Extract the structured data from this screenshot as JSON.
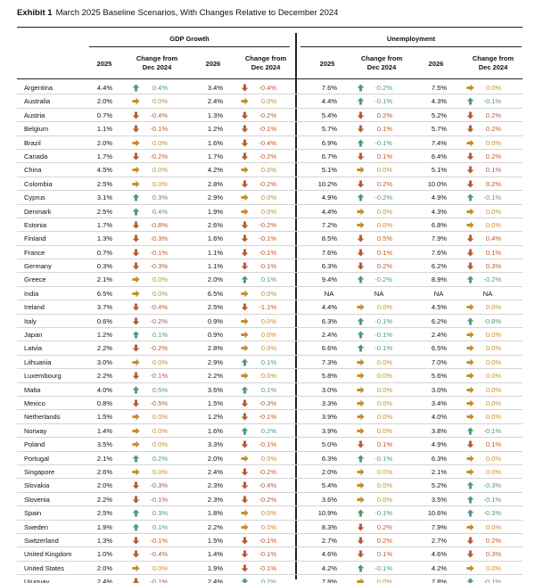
{
  "exhibit": {
    "label": "Exhibit 1",
    "title": "March 2025 Baseline Scenarios, With Changes Relative to December 2024"
  },
  "groups": {
    "gdp": "GDP Growth",
    "unemployment": "Unemployment"
  },
  "columns": {
    "y2025": "2025",
    "y2026": "2026",
    "change_line1": "Change from",
    "change_line2": "Dec 2024"
  },
  "colors": {
    "up": "#4d9a7a",
    "down": "#b85a2e",
    "flat": "#c78d2a"
  },
  "icons": {
    "up": "up-arrow-icon",
    "down": "down-arrow-icon",
    "flat": "right-arrow-icon"
  },
  "rows": [
    {
      "country": "Argentina",
      "g25": "4.4%",
      "g25d": "up",
      "g25c": "0.4%",
      "g26": "3.4%",
      "g26d": "down",
      "g26c": "-0.4%",
      "u25": "7.6%",
      "u25d": "up",
      "u25c": "-0.2%",
      "u26": "7.5%",
      "u26d": "flat",
      "u26c": "0.0%"
    },
    {
      "country": "Australia",
      "g25": "2.0%",
      "g25d": "flat",
      "g25c": "0.0%",
      "g26": "2.4%",
      "g26d": "flat",
      "g26c": "0.0%",
      "u25": "4.4%",
      "u25d": "up",
      "u25c": "-0.1%",
      "u26": "4.3%",
      "u26d": "up",
      "u26c": "-0.1%"
    },
    {
      "country": "Austria",
      "g25": "0.7%",
      "g25d": "down",
      "g25c": "-0.4%",
      "g26": "1.3%",
      "g26d": "down",
      "g26c": "-0.2%",
      "u25": "5.4%",
      "u25d": "down",
      "u25c": "0.2%",
      "u26": "5.2%",
      "u26d": "down",
      "u26c": "0.2%"
    },
    {
      "country": "Belgium",
      "g25": "1.1%",
      "g25d": "down",
      "g25c": "-0.1%",
      "g26": "1.2%",
      "g26d": "down",
      "g26c": "-0.1%",
      "u25": "5.7%",
      "u25d": "down",
      "u25c": "0.1%",
      "u26": "5.7%",
      "u26d": "down",
      "u26c": "0.2%"
    },
    {
      "country": "Brazil",
      "g25": "2.0%",
      "g25d": "flat",
      "g25c": "0.0%",
      "g26": "1.6%",
      "g26d": "down",
      "g26c": "-0.4%",
      "u25": "6.9%",
      "u25d": "up",
      "u25c": "-0.1%",
      "u26": "7.4%",
      "u26d": "flat",
      "u26c": "0.0%"
    },
    {
      "country": "Canada",
      "g25": "1.7%",
      "g25d": "down",
      "g25c": "-0.2%",
      "g26": "1.7%",
      "g26d": "down",
      "g26c": "-0.2%",
      "u25": "6.7%",
      "u25d": "down",
      "u25c": "0.1%",
      "u26": "6.4%",
      "u26d": "down",
      "u26c": "0.2%"
    },
    {
      "country": "China",
      "g25": "4.5%",
      "g25d": "flat",
      "g25c": "0.0%",
      "g26": "4.2%",
      "g26d": "flat",
      "g26c": "0.0%",
      "u25": "5.1%",
      "u25d": "flat",
      "u25c": "0.0%",
      "u26": "5.1%",
      "u26d": "down",
      "u26c": "0.1%"
    },
    {
      "country": "Colombia",
      "g25": "2.5%",
      "g25d": "flat",
      "g25c": "0.0%",
      "g26": "2.8%",
      "g26d": "down",
      "g26c": "-0.2%",
      "u25": "10.2%",
      "u25d": "down",
      "u25c": "0.2%",
      "u26": "10.0%",
      "u26d": "down",
      "u26c": "0.2%"
    },
    {
      "country": "Cyprus",
      "g25": "3.1%",
      "g25d": "up",
      "g25c": "0.3%",
      "g26": "2.9%",
      "g26d": "flat",
      "g26c": "0.0%",
      "u25": "4.9%",
      "u25d": "up",
      "u25c": "-0.2%",
      "u26": "4.9%",
      "u26d": "up",
      "u26c": "-0.1%"
    },
    {
      "country": "Denmark",
      "g25": "2.5%",
      "g25d": "up",
      "g25c": "0.4%",
      "g26": "1.9%",
      "g26d": "flat",
      "g26c": "0.0%",
      "u25": "4.4%",
      "u25d": "flat",
      "u25c": "0.0%",
      "u26": "4.3%",
      "u26d": "flat",
      "u26c": "0.0%"
    },
    {
      "country": "Estonia",
      "g25": "1.7%",
      "g25d": "down",
      "g25c": "-0.8%",
      "g26": "2.6%",
      "g26d": "down",
      "g26c": "-0.2%",
      "u25": "7.2%",
      "u25d": "flat",
      "u25c": "0.0%",
      "u26": "6.8%",
      "u26d": "flat",
      "u26c": "0.0%"
    },
    {
      "country": "Finland",
      "g25": "1.3%",
      "g25d": "down",
      "g25c": "-0.3%",
      "g26": "1.6%",
      "g26d": "down",
      "g26c": "-0.1%",
      "u25": "8.5%",
      "u25d": "down",
      "u25c": "0.5%",
      "u26": "7.9%",
      "u26d": "down",
      "u26c": "0.4%"
    },
    {
      "country": "France",
      "g25": "0.7%",
      "g25d": "down",
      "g25c": "-0.1%",
      "g26": "1.1%",
      "g26d": "down",
      "g26c": "-0.1%",
      "u25": "7.6%",
      "u25d": "down",
      "u25c": "0.1%",
      "u26": "7.6%",
      "u26d": "down",
      "u26c": "0.1%"
    },
    {
      "country": "Germany",
      "g25": "0.3%",
      "g25d": "down",
      "g25c": "-0.3%",
      "g26": "1.1%",
      "g26d": "down",
      "g26c": "-0.1%",
      "u25": "6.3%",
      "u25d": "down",
      "u25c": "0.2%",
      "u26": "6.2%",
      "u26d": "down",
      "u26c": "0.3%"
    },
    {
      "country": "Greece",
      "g25": "2.1%",
      "g25d": "flat",
      "g25c": "0.0%",
      "g26": "2.0%",
      "g26d": "up",
      "g26c": "0.1%",
      "u25": "9.4%",
      "u25d": "up",
      "u25c": "-0.2%",
      "u26": "8.9%",
      "u26d": "up",
      "u26c": "-0.2%"
    },
    {
      "country": "India",
      "g25": "6.5%",
      "g25d": "flat",
      "g25c": "0.0%",
      "g26": "6.5%",
      "g26d": "flat",
      "g26c": "0.0%",
      "u25": "NA",
      "u25d": "",
      "u25c": "NA",
      "u26": "NA",
      "u26d": "",
      "u26c": "NA"
    },
    {
      "country": "Ireland",
      "g25": "3.7%",
      "g25d": "down",
      "g25c": "-0.4%",
      "g26": "2.5%",
      "g26d": "down",
      "g26c": "-1.1%",
      "u25": "4.4%",
      "u25d": "flat",
      "u25c": "0.0%",
      "u26": "4.5%",
      "u26d": "flat",
      "u26c": "0.0%"
    },
    {
      "country": "Italy",
      "g25": "0.6%",
      "g25d": "down",
      "g25c": "-0.2%",
      "g26": "0.9%",
      "g26d": "flat",
      "g26c": "0.0%",
      "u25": "6.3%",
      "u25d": "up",
      "u25c": "-0.1%",
      "u26": "6.2%",
      "u26d": "up",
      "u26c": "-0.8%"
    },
    {
      "country": "Japan",
      "g25": "1.2%",
      "g25d": "up",
      "g25c": "0.1%",
      "g26": "0.9%",
      "g26d": "flat",
      "g26c": "0.0%",
      "u25": "2.4%",
      "u25d": "up",
      "u25c": "-0.1%",
      "u26": "2.4%",
      "u26d": "flat",
      "u26c": "0.0%"
    },
    {
      "country": "Latvia",
      "g25": "2.2%",
      "g25d": "down",
      "g25c": "-0.2%",
      "g26": "2.8%",
      "g26d": "flat",
      "g26c": "0.0%",
      "u25": "6.6%",
      "u25d": "up",
      "u25c": "-0.1%",
      "u26": "6.5%",
      "u26d": "flat",
      "u26c": "0.0%"
    },
    {
      "country": "Lithuania",
      "g25": "3.0%",
      "g25d": "flat",
      "g25c": "0.0%",
      "g26": "2.9%",
      "g26d": "up",
      "g26c": "0.1%",
      "u25": "7.3%",
      "u25d": "flat",
      "u25c": "0.0%",
      "u26": "7.0%",
      "u26d": "flat",
      "u26c": "0.0%"
    },
    {
      "country": "Luxembourg",
      "g25": "2.2%",
      "g25d": "down",
      "g25c": "-0.1%",
      "g26": "2.2%",
      "g26d": "flat",
      "g26c": "0.0%",
      "u25": "5.8%",
      "u25d": "flat",
      "u25c": "0.0%",
      "u26": "5.6%",
      "u26d": "flat",
      "u26c": "0.0%"
    },
    {
      "country": "Malta",
      "g25": "4.0%",
      "g25d": "up",
      "g25c": "0.5%",
      "g26": "3.6%",
      "g26d": "up",
      "g26c": "0.1%",
      "u25": "3.0%",
      "u25d": "flat",
      "u25c": "0.0%",
      "u26": "3.0%",
      "u26d": "flat",
      "u26c": "0.0%"
    },
    {
      "country": "Mexico",
      "g25": "0.8%",
      "g25d": "down",
      "g25c": "-0.5%",
      "g26": "1.5%",
      "g26d": "down",
      "g26c": "-0.3%",
      "u25": "3.3%",
      "u25d": "flat",
      "u25c": "0.0%",
      "u26": "3.4%",
      "u26d": "flat",
      "u26c": "0.0%"
    },
    {
      "country": "Netherlands",
      "g25": "1.5%",
      "g25d": "flat",
      "g25c": "0.0%",
      "g26": "1.2%",
      "g26d": "down",
      "g26c": "-0.1%",
      "u25": "3.9%",
      "u25d": "flat",
      "u25c": "0.0%",
      "u26": "4.0%",
      "u26d": "flat",
      "u26c": "0.0%"
    },
    {
      "country": "Norway",
      "g25": "1.4%",
      "g25d": "flat",
      "g25c": "0.0%",
      "g26": "1.6%",
      "g26d": "up",
      "g26c": "0.2%",
      "u25": "3.9%",
      "u25d": "flat",
      "u25c": "0.0%",
      "u26": "3.8%",
      "u26d": "up",
      "u26c": "-0.1%"
    },
    {
      "country": "Poland",
      "g25": "3.5%",
      "g25d": "flat",
      "g25c": "0.0%",
      "g26": "3.3%",
      "g26d": "down",
      "g26c": "-0.1%",
      "u25": "5.0%",
      "u25d": "down",
      "u25c": "0.1%",
      "u26": "4.9%",
      "u26d": "down",
      "u26c": "0.1%"
    },
    {
      "country": "Portugal",
      "g25": "2.1%",
      "g25d": "up",
      "g25c": "0.2%",
      "g26": "2.0%",
      "g26d": "flat",
      "g26c": "0.0%",
      "u25": "6.3%",
      "u25d": "up",
      "u25c": "-0.1%",
      "u26": "6.3%",
      "u26d": "flat",
      "u26c": "0.0%"
    },
    {
      "country": "Singapore",
      "g25": "2.6%",
      "g25d": "flat",
      "g25c": "0.0%",
      "g26": "2.4%",
      "g26d": "down",
      "g26c": "-0.2%",
      "u25": "2.0%",
      "u25d": "flat",
      "u25c": "0.0%",
      "u26": "2.1%",
      "u26d": "flat",
      "u26c": "0.0%"
    },
    {
      "country": "Slovakia",
      "g25": "2.0%",
      "g25d": "down",
      "g25c": "-0.3%",
      "g26": "2.3%",
      "g26d": "down",
      "g26c": "-0.4%",
      "u25": "5.4%",
      "u25d": "flat",
      "u25c": "0.0%",
      "u26": "5.2%",
      "u26d": "up",
      "u26c": "-0.3%"
    },
    {
      "country": "Slovenia",
      "g25": "2.2%",
      "g25d": "down",
      "g25c": "-0.1%",
      "g26": "2.3%",
      "g26d": "down",
      "g26c": "-0.2%",
      "u25": "3.6%",
      "u25d": "flat",
      "u25c": "0.0%",
      "u26": "3.5%",
      "u26d": "up",
      "u26c": "-0.1%"
    },
    {
      "country": "Spain",
      "g25": "2.5%",
      "g25d": "up",
      "g25c": "0.3%",
      "g26": "1.8%",
      "g26d": "flat",
      "g26c": "0.0%",
      "u25": "10.9%",
      "u25d": "up",
      "u25c": "-0.1%",
      "u26": "10.6%",
      "u26d": "up",
      "u26c": "-0.3%"
    },
    {
      "country": "Sweden",
      "g25": "1.9%",
      "g25d": "up",
      "g25c": "0.1%",
      "g26": "2.2%",
      "g26d": "flat",
      "g26c": "0.0%",
      "u25": "8.3%",
      "u25d": "down",
      "u25c": "0.2%",
      "u26": "7.9%",
      "u26d": "flat",
      "u26c": "0.0%"
    },
    {
      "country": "Switzerland",
      "g25": "1.3%",
      "g25d": "down",
      "g25c": "-0.1%",
      "g26": "1.5%",
      "g26d": "down",
      "g26c": "-0.1%",
      "u25": "2.7%",
      "u25d": "down",
      "u25c": "0.2%",
      "u26": "2.7%",
      "u26d": "down",
      "u26c": "0.2%"
    },
    {
      "country": "United Kingdom",
      "g25": "1.0%",
      "g25d": "down",
      "g25c": "-0.4%",
      "g26": "1.4%",
      "g26d": "down",
      "g26c": "-0.1%",
      "u25": "4.6%",
      "u25d": "down",
      "u25c": "0.1%",
      "u26": "4.6%",
      "u26d": "down",
      "u26c": "0.3%"
    },
    {
      "country": "United States",
      "g25": "2.0%",
      "g25d": "flat",
      "g25c": "0.0%",
      "g26": "1.9%",
      "g26d": "down",
      "g26c": "-0.1%",
      "u25": "4.2%",
      "u25d": "up",
      "u25c": "-0.1%",
      "u26": "4.2%",
      "u26d": "flat",
      "u26c": "0.0%"
    },
    {
      "country": "Uruguay",
      "g25": "2.4%",
      "g25d": "down",
      "g25c": "-0.1%",
      "g26": "2.4%",
      "g26d": "up",
      "g26c": "0.2%",
      "u25": "7.8%",
      "u25d": "flat",
      "u25c": "0.0%",
      "u26": "7.8%",
      "u26d": "up",
      "u26c": "-0.1%"
    }
  ]
}
